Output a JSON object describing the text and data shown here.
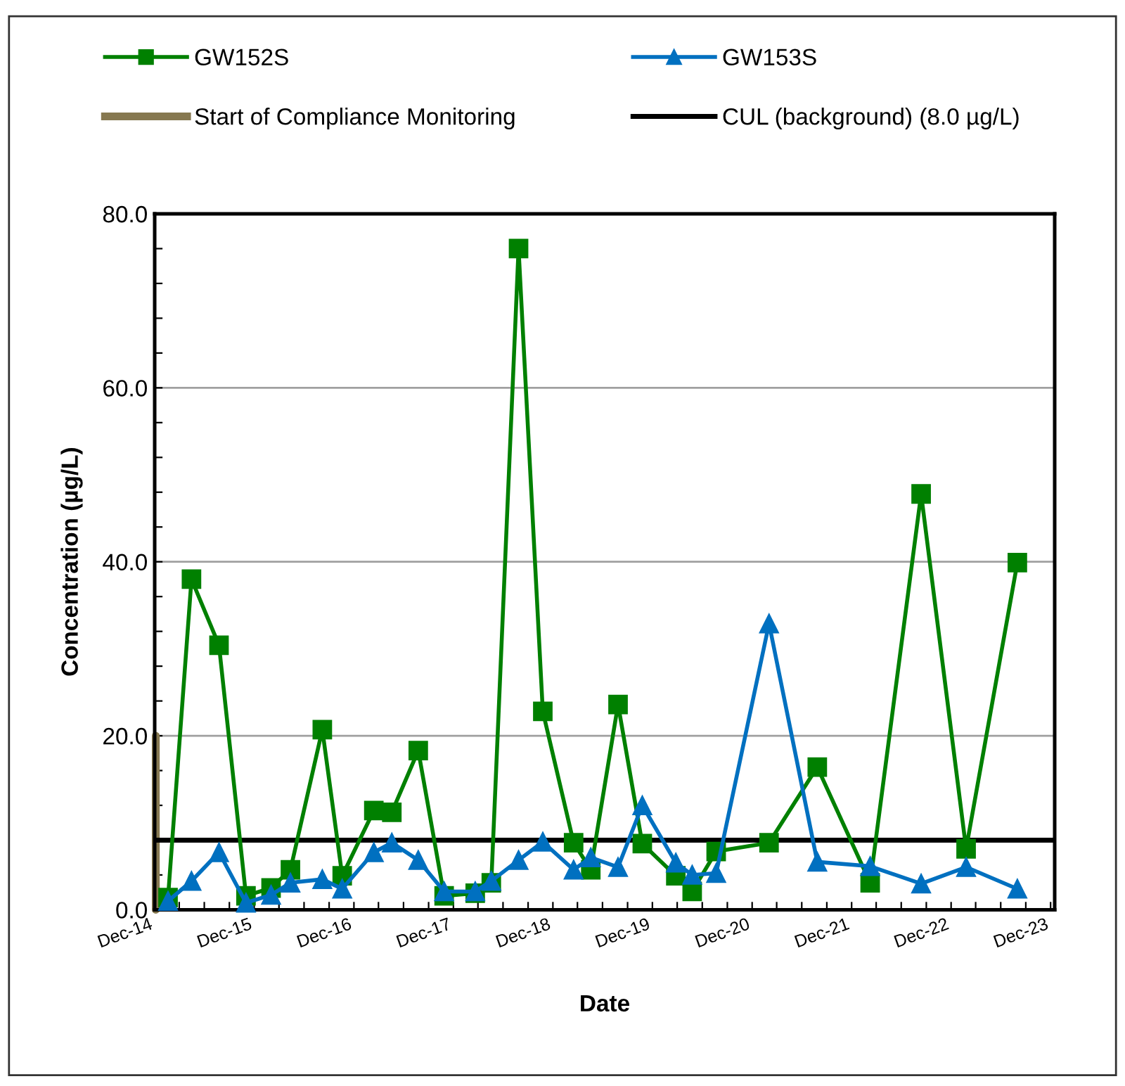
{
  "chart_data": {
    "type": "line",
    "xlabel": "Date",
    "ylabel": "Concentration (µg/L)",
    "x": [
      "2015-01-19",
      "2015-04-15",
      "2015-07-25",
      "2015-11-01",
      "2016-02-01",
      "2016-04-12",
      "2016-08-07",
      "2016-10-19",
      "2017-02-12",
      "2017-04-19",
      "2017-07-25",
      "2017-10-28",
      "2018-02-19",
      "2018-04-19",
      "2018-07-28",
      "2018-10-25",
      "2019-02-15",
      "2019-04-19",
      "2019-07-28",
      "2019-10-25",
      "2020-02-25",
      "2020-04-25",
      "2020-07-22",
      "2021-02-01",
      "2021-07-28",
      "2022-02-07",
      "2022-08-13",
      "2023-01-25",
      "2023-08-01"
    ],
    "series": [
      {
        "name": "GW152S",
        "color": "#008000",
        "marker": "square",
        "values": [
          1.4,
          38.0,
          30.4,
          1.6,
          2.5,
          4.6,
          20.7,
          3.9,
          11.4,
          11.2,
          18.3,
          1.6,
          1.9,
          3.1,
          76.0,
          22.8,
          7.7,
          4.6,
          23.6,
          7.6,
          3.9,
          2.1,
          6.7,
          7.7,
          16.4,
          3.1,
          47.8,
          7.0,
          39.9
        ]
      },
      {
        "name": "GW153S",
        "color": "#0070c0",
        "marker": "triangle",
        "values": [
          1.0,
          3.3,
          6.6,
          0.8,
          1.7,
          3.1,
          3.5,
          2.4,
          6.6,
          7.7,
          5.7,
          2.1,
          2.1,
          3.3,
          5.7,
          7.8,
          4.6,
          6.0,
          4.9,
          12.0,
          5.4,
          4.0,
          4.2,
          32.9,
          5.5,
          5.0,
          3.0,
          4.9,
          2.4
        ]
      },
      {
        "name": "Start of Compliance Monitoring",
        "color": "#867850",
        "marker": "none",
        "x": [
          "2014-12-05",
          "2014-12-05"
        ],
        "values": [
          0,
          20
        ]
      }
    ],
    "ref_lines": [
      {
        "axis": "y",
        "value": 8.0,
        "label": "CUL (background) (8.0 µg/L)",
        "color": "#000000",
        "line_style": "solid"
      }
    ],
    "xlim": [
      "2014-12-01",
      "2023-12-16"
    ],
    "xticks": [
      {
        "value": "2014-12-01",
        "label": "Dec-14"
      },
      {
        "value": "2015-03-01",
        "label": null
      },
      {
        "value": "2015-06-01",
        "label": null
      },
      {
        "value": "2015-09-01",
        "label": null
      },
      {
        "value": "2015-12-01",
        "label": "Dec-15"
      },
      {
        "value": "2016-03-01",
        "label": null
      },
      {
        "value": "2016-06-01",
        "label": null
      },
      {
        "value": "2016-09-01",
        "label": null
      },
      {
        "value": "2016-12-01",
        "label": "Dec-16"
      },
      {
        "value": "2017-03-01",
        "label": null
      },
      {
        "value": "2017-06-01",
        "label": null
      },
      {
        "value": "2017-09-01",
        "label": null
      },
      {
        "value": "2017-12-01",
        "label": "Dec-17"
      },
      {
        "value": "2018-03-01",
        "label": null
      },
      {
        "value": "2018-06-01",
        "label": null
      },
      {
        "value": "2018-09-01",
        "label": null
      },
      {
        "value": "2018-12-01",
        "label": "Dec-18"
      },
      {
        "value": "2019-03-01",
        "label": null
      },
      {
        "value": "2019-06-01",
        "label": null
      },
      {
        "value": "2019-09-01",
        "label": null
      },
      {
        "value": "2019-12-01",
        "label": "Dec-19"
      },
      {
        "value": "2020-03-01",
        "label": null
      },
      {
        "value": "2020-06-01",
        "label": null
      },
      {
        "value": "2020-09-01",
        "label": null
      },
      {
        "value": "2020-12-01",
        "label": "Dec-20"
      },
      {
        "value": "2021-03-01",
        "label": null
      },
      {
        "value": "2021-06-01",
        "label": null
      },
      {
        "value": "2021-09-01",
        "label": null
      },
      {
        "value": "2021-12-01",
        "label": "Dec-21"
      },
      {
        "value": "2022-03-01",
        "label": null
      },
      {
        "value": "2022-06-01",
        "label": null
      },
      {
        "value": "2022-09-01",
        "label": null
      },
      {
        "value": "2022-12-01",
        "label": "Dec-22"
      },
      {
        "value": "2023-03-01",
        "label": null
      },
      {
        "value": "2023-06-01",
        "label": null
      },
      {
        "value": "2023-09-01",
        "label": null
      },
      {
        "value": "2023-12-01",
        "label": "Dec-23"
      }
    ],
    "ylim": [
      0,
      80
    ],
    "yticks": [
      {
        "value": 0,
        "label": "0.0"
      },
      {
        "value": 4,
        "label": null
      },
      {
        "value": 8,
        "label": null
      },
      {
        "value": 12,
        "label": null
      },
      {
        "value": 16,
        "label": null
      },
      {
        "value": 20,
        "label": "20.0"
      },
      {
        "value": 24,
        "label": null
      },
      {
        "value": 28,
        "label": null
      },
      {
        "value": 32,
        "label": null
      },
      {
        "value": 36,
        "label": null
      },
      {
        "value": 40,
        "label": "40.0"
      },
      {
        "value": 44,
        "label": null
      },
      {
        "value": 48,
        "label": null
      },
      {
        "value": 52,
        "label": null
      },
      {
        "value": 56,
        "label": null
      },
      {
        "value": 60,
        "label": "60.0"
      },
      {
        "value": 64,
        "label": null
      },
      {
        "value": 68,
        "label": null
      },
      {
        "value": 72,
        "label": null
      },
      {
        "value": 76,
        "label": null
      },
      {
        "value": 80,
        "label": "80.0"
      }
    ],
    "grid": "y",
    "legend": "top",
    "line_style": "solid"
  }
}
